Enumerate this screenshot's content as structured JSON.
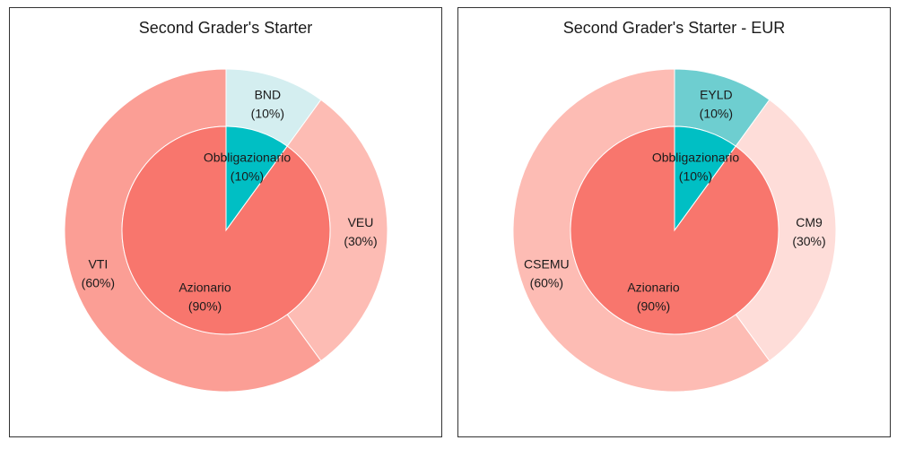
{
  "chart_data": [
    {
      "type": "pie",
      "title": "Second Grader's Starter",
      "inner": {
        "slices": [
          {
            "label": "Obbligazionario",
            "pct_text": "(10%)",
            "value": 10,
            "color": "#00BFC4"
          },
          {
            "label": "Azionario",
            "pct_text": "(90%)",
            "value": 90,
            "color": "#F8766D"
          }
        ]
      },
      "outer": {
        "slices": [
          {
            "label": "BND",
            "pct_text": "(10%)",
            "value": 10,
            "color": "#D4EEF0"
          },
          {
            "label": "VEU",
            "pct_text": "(30%)",
            "value": 30,
            "color": "#FDBCB4"
          },
          {
            "label": "VTI",
            "pct_text": "(60%)",
            "value": 60,
            "color": "#FB9E95"
          }
        ]
      }
    },
    {
      "type": "pie",
      "title": "Second Grader's Starter - EUR",
      "inner": {
        "slices": [
          {
            "label": "Obbligazionario",
            "pct_text": "(10%)",
            "value": 10,
            "color": "#00BFC4"
          },
          {
            "label": "Azionario",
            "pct_text": "(90%)",
            "value": 90,
            "color": "#F8766D"
          }
        ]
      },
      "outer": {
        "slices": [
          {
            "label": "EYLD",
            "pct_text": "(10%)",
            "value": 10,
            "color": "#6ECED0"
          },
          {
            "label": "CM9",
            "pct_text": "(30%)",
            "value": 30,
            "color": "#FEDDD9"
          },
          {
            "label": "CSEMU",
            "pct_text": "(60%)",
            "value": 60,
            "color": "#FDBCB4"
          }
        ]
      }
    }
  ]
}
